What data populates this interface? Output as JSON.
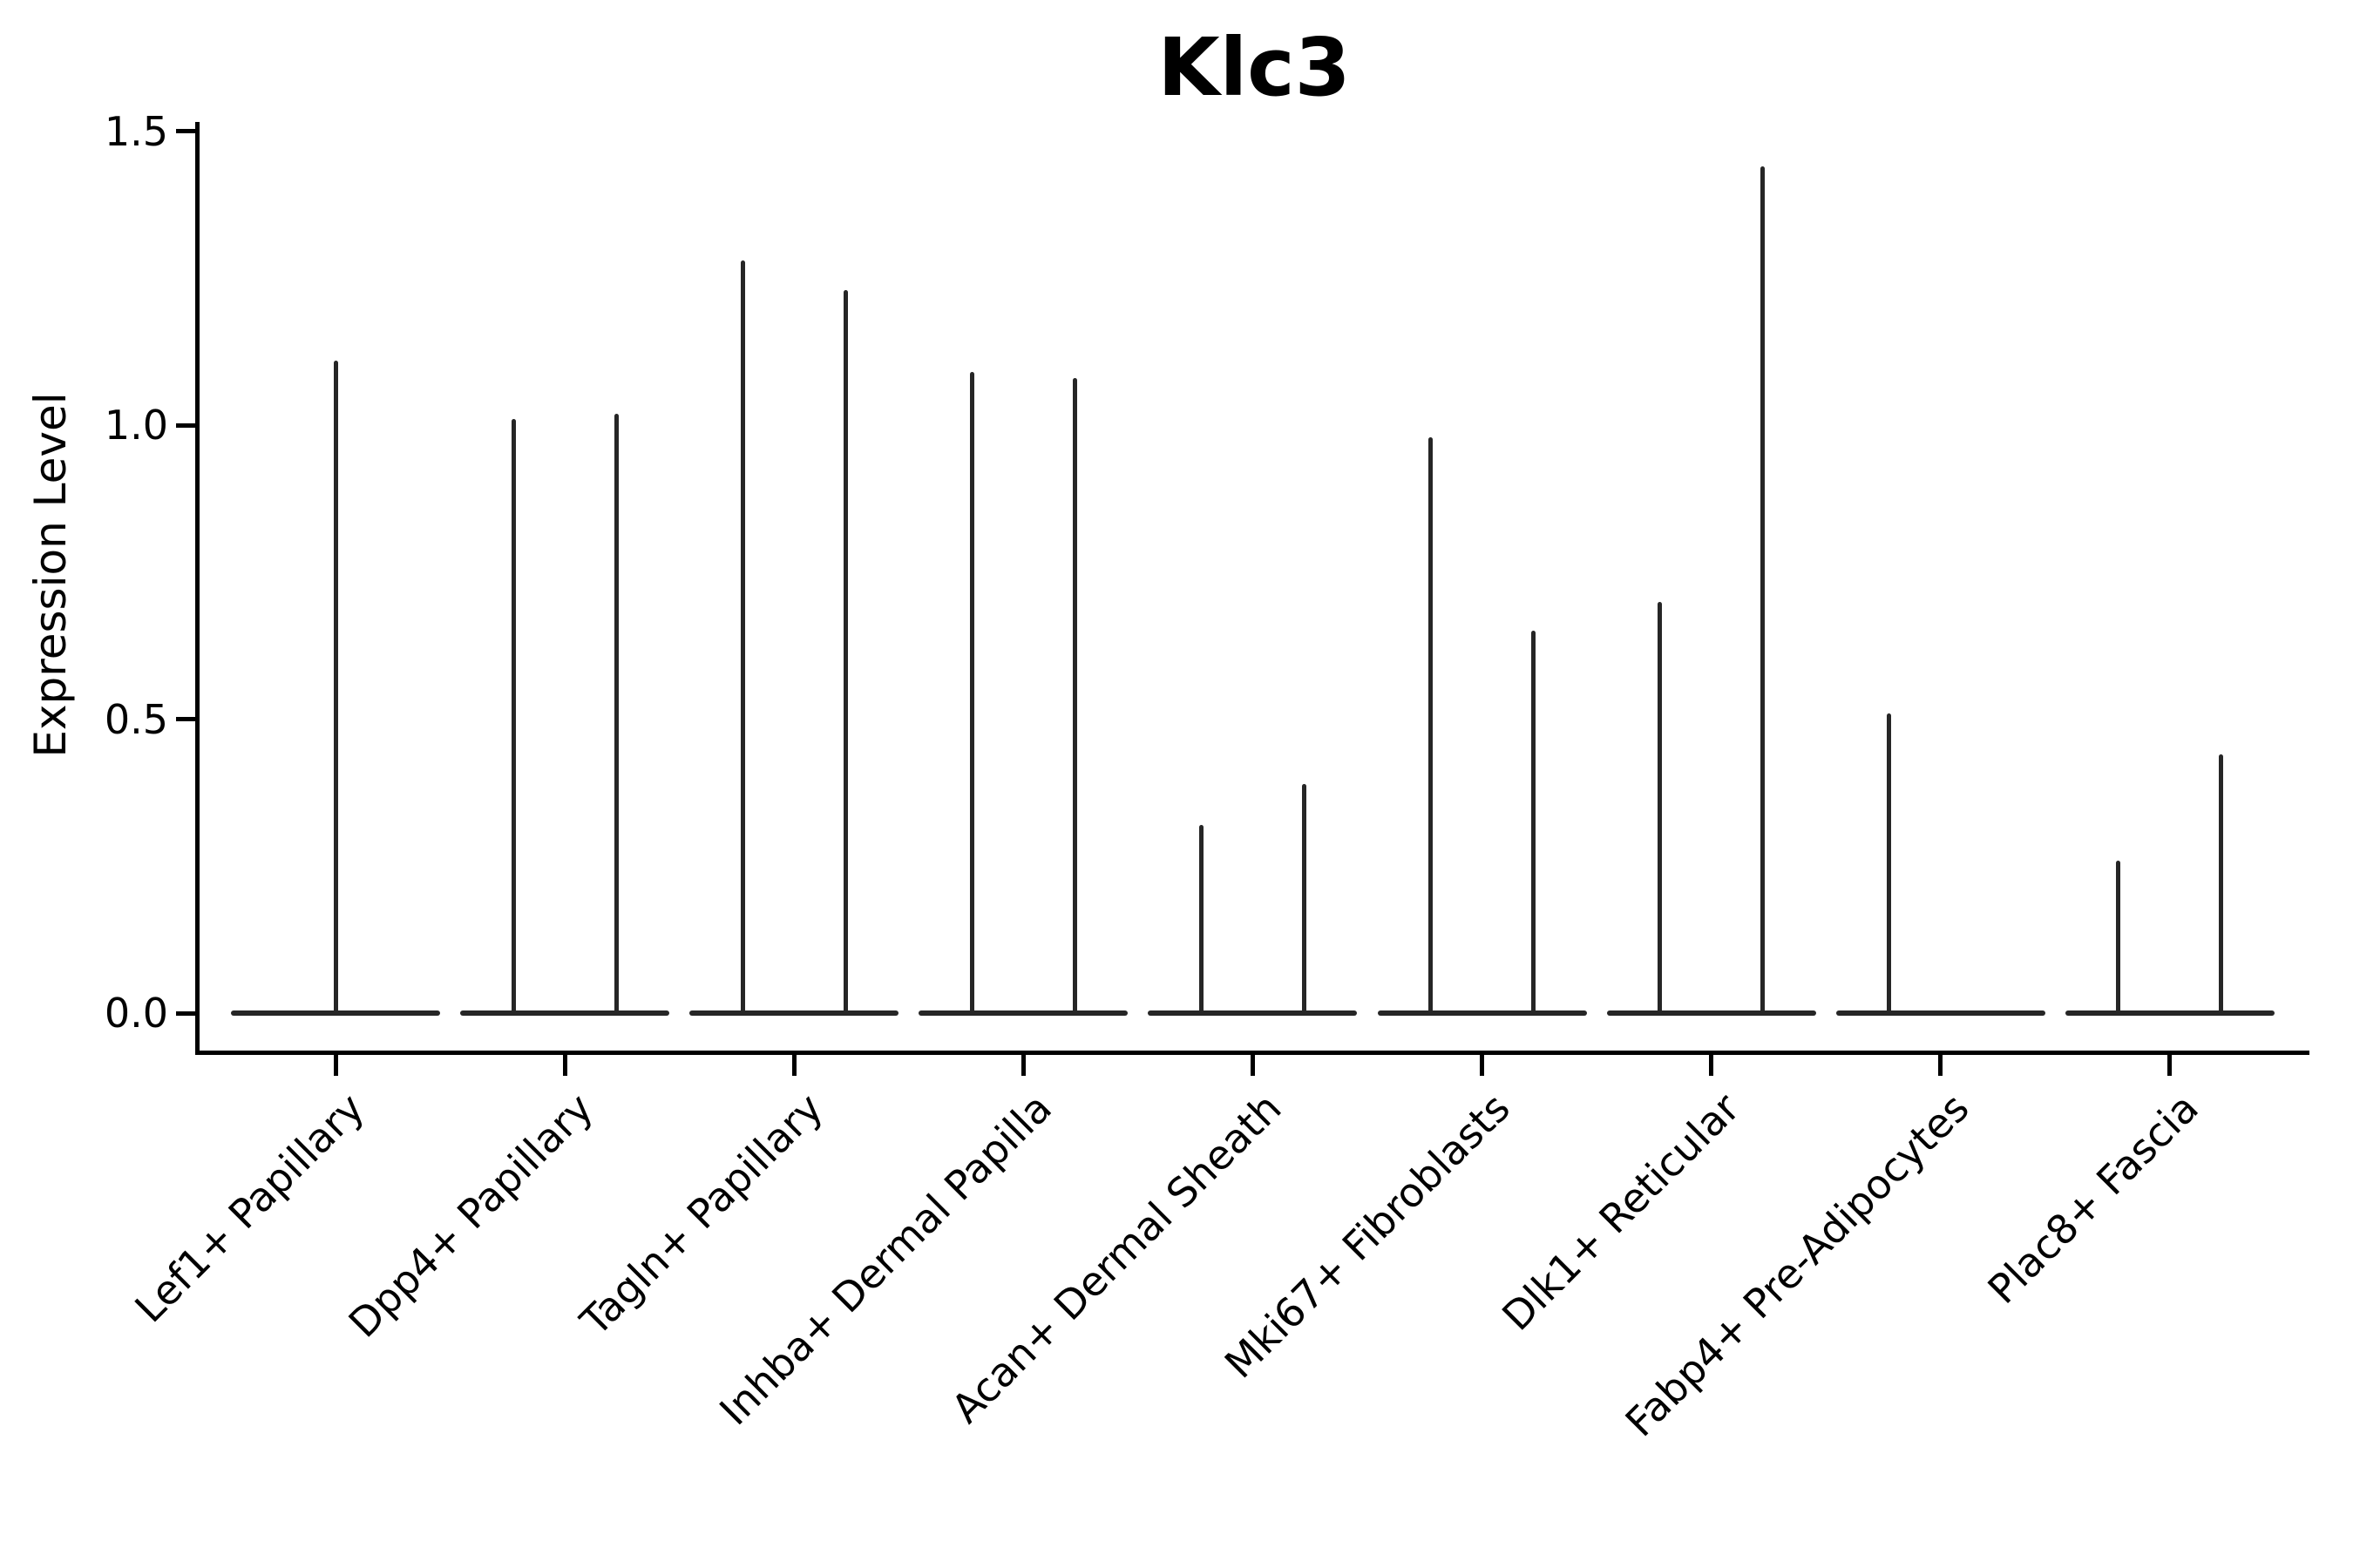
{
  "title": "Klc3",
  "y_axis": {
    "label": "Expression Level",
    "tick_labels": [
      "0.0",
      "0.5",
      "1.0",
      "1.5"
    ]
  },
  "chart_data": {
    "type": "violin",
    "title": "Klc3",
    "xlabel": "",
    "ylabel": "Expression Level",
    "ylim": [
      -0.07,
      1.52
    ],
    "yticks": [
      0.0,
      0.5,
      1.0,
      1.5
    ],
    "grid": false,
    "legend": "none",
    "violin_color": "#262626",
    "note": "Needle-thin violins: each category shows a flat zero baseline with up to two vertical spikes (split violins); spike value = maximum expression level",
    "categories": [
      "Lef1+ Papillary",
      "Dpp4+ Papillary",
      "Tagln+ Papillary",
      "Inhba+ Dermal Papilla",
      "Acan+ Dermal Sheath",
      "Mki67+ Fibroblasts",
      "Dlk1+ Reticular",
      "Fabp4+ Pre-Adipocytes",
      "Plac8+ Fascia"
    ],
    "series": [
      {
        "category": "Lef1+ Papillary",
        "spikes": [
          {
            "side": "center",
            "max": 1.11
          }
        ]
      },
      {
        "category": "Dpp4+ Papillary",
        "spikes": [
          {
            "side": "left",
            "max": 1.01
          },
          {
            "side": "right",
            "max": 1.02
          }
        ]
      },
      {
        "category": "Tagln+ Papillary",
        "spikes": [
          {
            "side": "left",
            "max": 1.28
          },
          {
            "side": "right",
            "max": 1.23
          }
        ]
      },
      {
        "category": "Inhba+ Dermal Papilla",
        "spikes": [
          {
            "side": "left",
            "max": 1.09
          },
          {
            "side": "right",
            "max": 1.08
          }
        ]
      },
      {
        "category": "Acan+ Dermal Sheath",
        "spikes": [
          {
            "side": "left",
            "max": 0.32
          },
          {
            "side": "right",
            "max": 0.39
          }
        ]
      },
      {
        "category": "Mki67+ Fibroblasts",
        "spikes": [
          {
            "side": "left",
            "max": 0.98
          },
          {
            "side": "right",
            "max": 0.65
          }
        ]
      },
      {
        "category": "Dlk1+ Reticular",
        "spikes": [
          {
            "side": "left",
            "max": 0.7
          },
          {
            "side": "right",
            "max": 1.44
          }
        ]
      },
      {
        "category": "Fabp4+ Pre-Adipocytes",
        "spikes": [
          {
            "side": "left",
            "max": 0.51
          }
        ]
      },
      {
        "category": "Plac8+ Fascia",
        "spikes": [
          {
            "side": "left",
            "max": 0.26
          },
          {
            "side": "right",
            "max": 0.44
          }
        ]
      }
    ]
  }
}
